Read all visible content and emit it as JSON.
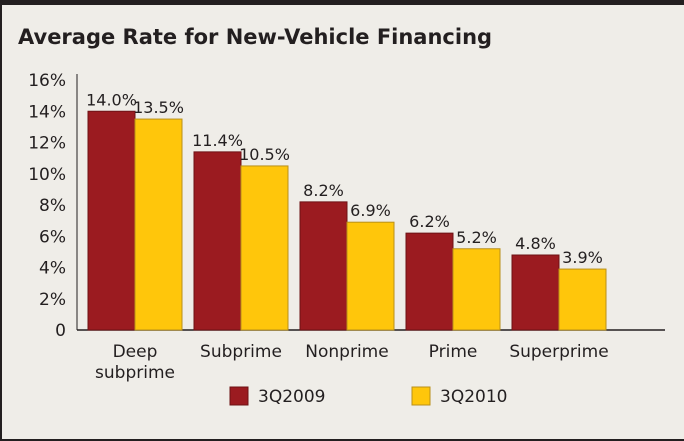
{
  "chart_data": {
    "type": "bar",
    "title": "Average Rate for New-Vehicle Financing",
    "categories": [
      [
        "Deep",
        "subprime"
      ],
      [
        "Subprime"
      ],
      [
        "Nonprime"
      ],
      [
        "Prime"
      ],
      [
        "Superprime"
      ]
    ],
    "series": [
      {
        "name": "3Q2009",
        "color": "#9b1b20",
        "values": [
          14.0,
          11.4,
          8.2,
          6.2,
          4.8
        ],
        "labels": [
          "14.0%",
          "11.4%",
          "8.2%",
          "6.2%",
          "4.8%"
        ]
      },
      {
        "name": "3Q2010",
        "color": "#ffc60b",
        "values": [
          13.5,
          10.5,
          6.9,
          5.2,
          3.9
        ],
        "labels": [
          "13.5%",
          "10.5%",
          "6.9%",
          "5.2%",
          "3.9%"
        ]
      }
    ],
    "yticks": [
      "0",
      "2%",
      "4%",
      "6%",
      "8%",
      "10%",
      "12%",
      "14%",
      "16%"
    ],
    "ylim": [
      0,
      16
    ],
    "xlabel": "",
    "ylabel": "",
    "legend": "bottom",
    "grid": false
  }
}
